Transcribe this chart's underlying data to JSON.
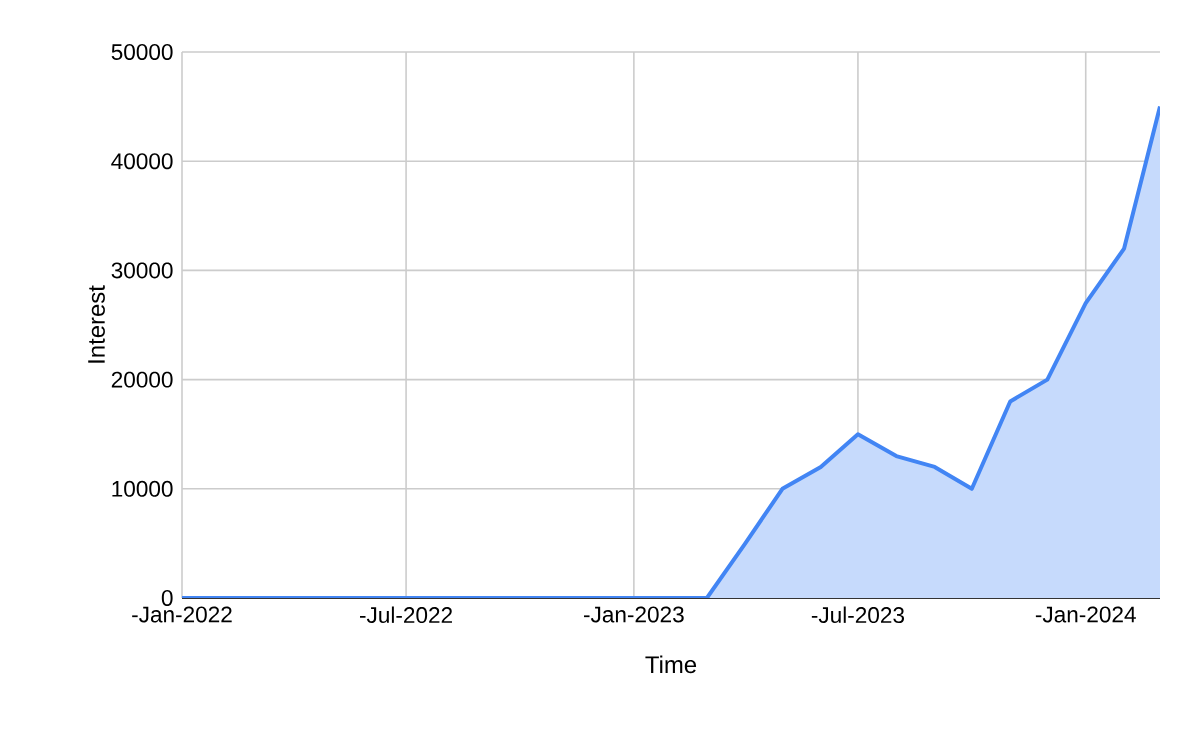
{
  "chart_data": {
    "type": "area",
    "xlabel": "Time",
    "ylabel": "Interest",
    "x": [
      "2022-01",
      "2022-02",
      "2022-03",
      "2022-04",
      "2022-05",
      "2022-06",
      "2022-07",
      "2022-08",
      "2022-09",
      "2022-10",
      "2022-11",
      "2022-12",
      "2023-01",
      "2023-02",
      "2023-03",
      "2023-04",
      "2023-05",
      "2023-06",
      "2023-07",
      "2023-08",
      "2023-09",
      "2023-10",
      "2023-11",
      "2023-12",
      "2024-01",
      "2024-02",
      "2024-03"
    ],
    "series": [
      {
        "color": "#4285f4",
        "values": [
          0,
          0,
          0,
          0,
          0,
          0,
          0,
          0,
          0,
          0,
          0,
          0,
          0,
          0,
          0,
          5000,
          10000,
          12000,
          15000,
          13000,
          12000,
          10000,
          18000,
          20000,
          27000,
          32000,
          45000
        ]
      }
    ],
    "xlim": [
      "2022-01",
      "2024-03"
    ],
    "xticks": [
      {
        "value": "2022-01",
        "label": "-Jan-2022"
      },
      {
        "value": "2022-07",
        "label": "-Jul-2022"
      },
      {
        "value": "2023-01",
        "label": "-Jan-2023"
      },
      {
        "value": "2023-07",
        "label": "-Jul-2023"
      },
      {
        "value": "2024-01",
        "label": "-Jan-2024"
      }
    ],
    "ylim": [
      0,
      50000
    ],
    "yticks": [
      0,
      10000,
      20000,
      30000,
      40000,
      50000
    ],
    "grid": true
  }
}
